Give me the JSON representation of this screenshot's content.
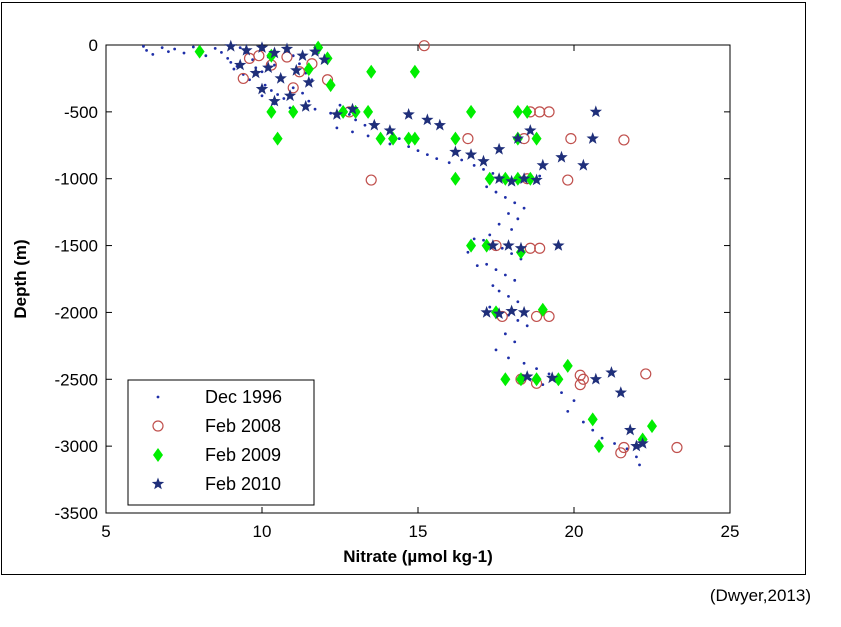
{
  "citation": "(Dwyer,2013)",
  "chart_data": {
    "type": "scatter",
    "xlabel": "Nitrate (µmol kg-1)",
    "ylabel": "Depth (m)",
    "xlim": [
      5,
      25
    ],
    "ylim": [
      -3500,
      0
    ],
    "xticks": [
      5,
      10,
      15,
      20,
      25
    ],
    "yticks": [
      0,
      -500,
      -1000,
      -1500,
      -2000,
      -2500,
      -3000,
      -3500
    ],
    "xtick_labels": [
      "5",
      "10",
      "15",
      "20",
      "25"
    ],
    "ytick_labels": [
      "0",
      "-500",
      "-1000",
      "-1500",
      "-2000",
      "-2500",
      "-3000",
      "-3500"
    ],
    "grid": false,
    "legend_position": "bottom-left",
    "series": [
      {
        "name": "Dec 1996",
        "marker": "dot",
        "color": "#1f2fa8",
        "points": [
          [
            6.2,
            -10
          ],
          [
            6.3,
            -40
          ],
          [
            6.5,
            -70
          ],
          [
            6.8,
            -20
          ],
          [
            7.0,
            -50
          ],
          [
            7.2,
            -30
          ],
          [
            7.5,
            -60
          ],
          [
            7.8,
            -15
          ],
          [
            8.0,
            -45
          ],
          [
            8.2,
            -80
          ],
          [
            8.5,
            -25
          ],
          [
            8.7,
            -55
          ],
          [
            8.9,
            -100
          ],
          [
            9.0,
            -130
          ],
          [
            9.2,
            -160
          ],
          [
            9.3,
            -20
          ],
          [
            9.5,
            -60
          ],
          [
            9.7,
            -110
          ],
          [
            9.8,
            -170
          ],
          [
            10.0,
            -200
          ],
          [
            10.2,
            -90
          ],
          [
            10.4,
            -150
          ],
          [
            10.6,
            -230
          ],
          [
            10.8,
            -30
          ],
          [
            11.0,
            -80
          ],
          [
            11.2,
            -140
          ],
          [
            11.4,
            -210
          ],
          [
            11.6,
            -260
          ],
          [
            11.8,
            -60
          ],
          [
            12.0,
            -120
          ],
          [
            9.1,
            -180
          ],
          [
            9.4,
            -220
          ],
          [
            9.6,
            -260
          ],
          [
            10.1,
            -300
          ],
          [
            10.3,
            -340
          ],
          [
            10.5,
            -370
          ],
          [
            10.7,
            -400
          ],
          [
            11.0,
            -320
          ],
          [
            11.3,
            -360
          ],
          [
            11.5,
            -420
          ],
          [
            10.0,
            -380
          ],
          [
            10.4,
            -440
          ],
          [
            10.9,
            -470
          ],
          [
            11.7,
            -480
          ],
          [
            12.2,
            -510
          ],
          [
            12.5,
            -450
          ],
          [
            12.8,
            -520
          ],
          [
            13.0,
            -560
          ],
          [
            13.3,
            -600
          ],
          [
            13.6,
            -580
          ],
          [
            12.4,
            -620
          ],
          [
            12.9,
            -650
          ],
          [
            13.4,
            -680
          ],
          [
            13.8,
            -710
          ],
          [
            14.1,
            -740
          ],
          [
            14.4,
            -700
          ],
          [
            14.7,
            -760
          ],
          [
            15.0,
            -790
          ],
          [
            15.3,
            -820
          ],
          [
            15.6,
            -850
          ],
          [
            16.0,
            -880
          ],
          [
            16.4,
            -860
          ],
          [
            16.8,
            -900
          ],
          [
            17.1,
            -930
          ],
          [
            17.4,
            -960
          ],
          [
            17.7,
            -990
          ],
          [
            18.0,
            -1000
          ],
          [
            18.3,
            -1020
          ],
          [
            18.6,
            -1000
          ],
          [
            18.9,
            -980
          ],
          [
            17.2,
            -1060
          ],
          [
            17.5,
            -1100
          ],
          [
            17.8,
            -1140
          ],
          [
            18.1,
            -1180
          ],
          [
            18.4,
            -1220
          ],
          [
            17.9,
            -1260
          ],
          [
            18.2,
            -1300
          ],
          [
            17.6,
            -1340
          ],
          [
            18.0,
            -1380
          ],
          [
            17.3,
            -1420
          ],
          [
            17.1,
            -1460
          ],
          [
            17.4,
            -1500
          ],
          [
            17.7,
            -1520
          ],
          [
            18.0,
            -1560
          ],
          [
            18.3,
            -1600
          ],
          [
            17.2,
            -1640
          ],
          [
            17.5,
            -1680
          ],
          [
            17.8,
            -1720
          ],
          [
            18.1,
            -1760
          ],
          [
            17.4,
            -1800
          ],
          [
            17.6,
            -1840
          ],
          [
            17.9,
            -1880
          ],
          [
            18.2,
            -1920
          ],
          [
            17.3,
            -1960
          ],
          [
            17.6,
            -2000
          ],
          [
            17.9,
            -2020
          ],
          [
            18.2,
            -2060
          ],
          [
            18.5,
            -2100
          ],
          [
            17.8,
            -2160
          ],
          [
            18.1,
            -2220
          ],
          [
            17.5,
            -2280
          ],
          [
            17.9,
            -2340
          ],
          [
            18.4,
            -2380
          ],
          [
            18.8,
            -2420
          ],
          [
            19.2,
            -2460
          ],
          [
            18.6,
            -2500
          ],
          [
            19.0,
            -2540
          ],
          [
            19.6,
            -2600
          ],
          [
            20.0,
            -2660
          ],
          [
            19.8,
            -2740
          ],
          [
            20.3,
            -2820
          ],
          [
            20.6,
            -2880
          ],
          [
            20.9,
            -2940
          ],
          [
            21.3,
            -2980
          ],
          [
            21.7,
            -3020
          ],
          [
            22.0,
            -3080
          ],
          [
            22.1,
            -3140
          ],
          [
            16.8,
            -1450
          ],
          [
            16.6,
            -1550
          ],
          [
            16.9,
            -1650
          ]
        ]
      },
      {
        "name": "Feb 2008",
        "marker": "circle",
        "color": "#c0504d",
        "points": [
          [
            15.2,
            -5
          ],
          [
            9.4,
            -250
          ],
          [
            9.6,
            -100
          ],
          [
            9.9,
            -80
          ],
          [
            10.3,
            -150
          ],
          [
            10.8,
            -90
          ],
          [
            11.2,
            -200
          ],
          [
            11.6,
            -140
          ],
          [
            12.1,
            -260
          ],
          [
            11.0,
            -320
          ],
          [
            12.8,
            -500
          ],
          [
            13.5,
            -1010
          ],
          [
            16.6,
            -700
          ],
          [
            18.6,
            -500
          ],
          [
            18.9,
            -500
          ],
          [
            19.2,
            -500
          ],
          [
            18.4,
            -700
          ],
          [
            19.9,
            -700
          ],
          [
            21.6,
            -710
          ],
          [
            18.5,
            -1000
          ],
          [
            19.8,
            -1010
          ],
          [
            17.5,
            -1500
          ],
          [
            18.6,
            -1520
          ],
          [
            18.9,
            -1520
          ],
          [
            17.7,
            -2030
          ],
          [
            18.8,
            -2030
          ],
          [
            19.2,
            -2030
          ],
          [
            18.3,
            -2500
          ],
          [
            18.8,
            -2530
          ],
          [
            20.2,
            -2470
          ],
          [
            20.2,
            -2540
          ],
          [
            22.3,
            -2460
          ],
          [
            21.5,
            -3050
          ],
          [
            21.6,
            -3010
          ],
          [
            23.3,
            -3010
          ],
          [
            20.3,
            -2500
          ]
        ]
      },
      {
        "name": "Feb 2009",
        "marker": "diamond",
        "color": "#00ee00",
        "points": [
          [
            8.0,
            -50
          ],
          [
            10.3,
            -80
          ],
          [
            11.8,
            -20
          ],
          [
            12.1,
            -100
          ],
          [
            11.5,
            -180
          ],
          [
            13.5,
            -200
          ],
          [
            14.9,
            -200
          ],
          [
            12.2,
            -300
          ],
          [
            10.3,
            -500
          ],
          [
            11.0,
            -500
          ],
          [
            10.5,
            -700
          ],
          [
            12.6,
            -500
          ],
          [
            13.0,
            -500
          ],
          [
            13.4,
            -500
          ],
          [
            13.8,
            -700
          ],
          [
            14.2,
            -700
          ],
          [
            14.7,
            -700
          ],
          [
            14.9,
            -700
          ],
          [
            16.2,
            -700
          ],
          [
            16.7,
            -500
          ],
          [
            18.2,
            -500
          ],
          [
            18.5,
            -500
          ],
          [
            18.2,
            -700
          ],
          [
            18.8,
            -700
          ],
          [
            16.2,
            -1000
          ],
          [
            17.3,
            -1000
          ],
          [
            17.8,
            -1000
          ],
          [
            18.2,
            -1000
          ],
          [
            18.6,
            -1000
          ],
          [
            16.7,
            -1500
          ],
          [
            17.2,
            -1500
          ],
          [
            18.3,
            -1550
          ],
          [
            17.5,
            -2000
          ],
          [
            19.0,
            -1980
          ],
          [
            17.8,
            -2500
          ],
          [
            18.3,
            -2500
          ],
          [
            18.8,
            -2500
          ],
          [
            19.5,
            -2500
          ],
          [
            19.8,
            -2400
          ],
          [
            20.6,
            -2800
          ],
          [
            20.8,
            -3000
          ],
          [
            22.2,
            -2950
          ],
          [
            22.5,
            -2850
          ]
        ]
      },
      {
        "name": "Feb 2010",
        "marker": "star",
        "color": "#1f2f7a",
        "points": [
          [
            9.0,
            -10
          ],
          [
            9.5,
            -40
          ],
          [
            10.0,
            -20
          ],
          [
            10.4,
            -60
          ],
          [
            10.8,
            -30
          ],
          [
            11.3,
            -80
          ],
          [
            11.7,
            -50
          ],
          [
            12.0,
            -110
          ],
          [
            9.3,
            -150
          ],
          [
            9.8,
            -210
          ],
          [
            10.2,
            -170
          ],
          [
            10.6,
            -250
          ],
          [
            11.1,
            -190
          ],
          [
            11.5,
            -280
          ],
          [
            10.0,
            -330
          ],
          [
            10.4,
            -420
          ],
          [
            10.9,
            -380
          ],
          [
            11.4,
            -460
          ],
          [
            12.4,
            -520
          ],
          [
            12.9,
            -480
          ],
          [
            13.6,
            -600
          ],
          [
            14.1,
            -640
          ],
          [
            14.7,
            -520
          ],
          [
            15.3,
            -560
          ],
          [
            15.7,
            -600
          ],
          [
            16.2,
            -800
          ],
          [
            16.7,
            -820
          ],
          [
            17.1,
            -870
          ],
          [
            17.6,
            -780
          ],
          [
            18.2,
            -700
          ],
          [
            18.6,
            -640
          ],
          [
            19.0,
            -900
          ],
          [
            19.6,
            -840
          ],
          [
            20.3,
            -900
          ],
          [
            20.6,
            -700
          ],
          [
            20.7,
            -500
          ],
          [
            17.6,
            -1000
          ],
          [
            18.0,
            -1020
          ],
          [
            18.4,
            -1000
          ],
          [
            18.8,
            -1010
          ],
          [
            17.4,
            -1500
          ],
          [
            17.9,
            -1500
          ],
          [
            18.3,
            -1520
          ],
          [
            19.5,
            -1500
          ],
          [
            17.2,
            -2000
          ],
          [
            17.6,
            -2010
          ],
          [
            18.0,
            -1990
          ],
          [
            18.4,
            -2000
          ],
          [
            18.5,
            -2480
          ],
          [
            19.3,
            -2490
          ],
          [
            20.7,
            -2500
          ],
          [
            21.2,
            -2450
          ],
          [
            21.5,
            -2600
          ],
          [
            21.8,
            -2880
          ],
          [
            22.0,
            -3000
          ],
          [
            22.2,
            -2980
          ]
        ]
      }
    ]
  }
}
